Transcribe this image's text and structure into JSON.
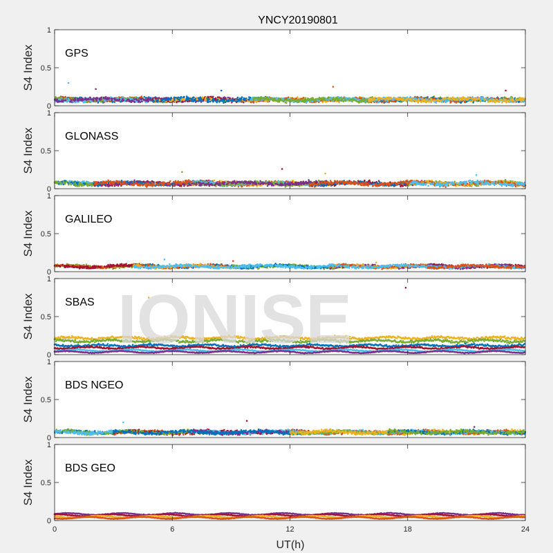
{
  "chart_data": {
    "type": "scatter",
    "title": "YNCY20190801",
    "xlabel": "UT(h)",
    "ylabel": "S4 Index",
    "xlim": [
      0,
      24
    ],
    "ylim": [
      0,
      1
    ],
    "x_ticks": [
      "0",
      "6",
      "12",
      "18",
      "24"
    ],
    "y_ticks": [
      "0",
      "0.5",
      "1"
    ],
    "watermark": "IONISE",
    "colors": [
      "#0072bd",
      "#d95319",
      "#edb120",
      "#7e2f8e",
      "#77ac30",
      "#4dbeee",
      "#a2142f"
    ],
    "panels": [
      {
        "label": "GPS",
        "baseline": 0.08,
        "noise": 0.035,
        "segments": [
          {
            "start": 0,
            "end": 6,
            "colors": [
              "#0072bd",
              "#d95319",
              "#77ac30",
              "#4dbeee",
              "#7e2f8e"
            ]
          },
          {
            "start": 5,
            "end": 11,
            "colors": [
              "#7e2f8e",
              "#a2142f",
              "#edb120",
              "#0072bd"
            ]
          },
          {
            "start": 10,
            "end": 17,
            "colors": [
              "#edb120",
              "#d95319",
              "#4dbeee",
              "#77ac30"
            ]
          },
          {
            "start": 16,
            "end": 24,
            "colors": [
              "#77ac30",
              "#0072bd",
              "#d95319",
              "#4dbeee",
              "#edb120"
            ]
          }
        ],
        "outliers": [
          [
            0.7,
            0.3
          ],
          [
            2.1,
            0.22
          ],
          [
            8.5,
            0.2
          ],
          [
            14.2,
            0.25
          ],
          [
            23.0,
            0.2
          ]
        ]
      },
      {
        "label": "GLONASS",
        "baseline": 0.07,
        "noise": 0.035,
        "segments": [
          {
            "start": 0,
            "end": 2.5,
            "colors": [
              "#4dbeee",
              "#0072bd",
              "#77ac30"
            ]
          },
          {
            "start": 2,
            "end": 8,
            "colors": [
              "#a2142f",
              "#7e2f8e",
              "#0072bd",
              "#d95319"
            ]
          },
          {
            "start": 7,
            "end": 14,
            "colors": [
              "#edb120",
              "#d95319",
              "#4dbeee",
              "#77ac30",
              "#7e2f8e"
            ]
          },
          {
            "start": 13,
            "end": 19,
            "colors": [
              "#a2142f",
              "#0072bd",
              "#d95319"
            ]
          },
          {
            "start": 18,
            "end": 24,
            "colors": [
              "#77ac30",
              "#edb120",
              "#d95319",
              "#4dbeee"
            ]
          }
        ],
        "outliers": [
          [
            6.5,
            0.22
          ],
          [
            11.6,
            0.26
          ],
          [
            13.8,
            0.2
          ],
          [
            21.5,
            0.18
          ]
        ]
      },
      {
        "label": "GALILEO",
        "baseline": 0.07,
        "noise": 0.025,
        "segments": [
          {
            "start": 0,
            "end": 5,
            "colors": [
              "#77ac30",
              "#d95319",
              "#a2142f"
            ]
          },
          {
            "start": 4,
            "end": 10,
            "colors": [
              "#0072bd",
              "#d95319",
              "#edb120",
              "#4dbeee"
            ]
          },
          {
            "start": 9,
            "end": 15,
            "colors": [
              "#77ac30",
              "#0072bd",
              "#4dbeee"
            ]
          },
          {
            "start": 14,
            "end": 20,
            "colors": [
              "#7e2f8e",
              "#edb120",
              "#d95319",
              "#4dbeee"
            ]
          },
          {
            "start": 19,
            "end": 24,
            "colors": [
              "#a2142f",
              "#7e2f8e",
              "#4dbeee",
              "#d95319"
            ]
          }
        ],
        "outliers": [
          [
            5.6,
            0.16
          ],
          [
            9.1,
            0.14
          ],
          [
            16.4,
            0.12
          ]
        ]
      },
      {
        "label": "SBAS",
        "bands": [
          {
            "color": "#edb120",
            "level": 0.22,
            "noise": 0.025
          },
          {
            "color": "#77ac30",
            "level": 0.18,
            "noise": 0.025
          },
          {
            "color": "#0072bd",
            "level": 0.12,
            "noise": 0.02
          },
          {
            "color": "#a2142f",
            "level": 0.09,
            "noise": 0.015
          },
          {
            "color": "#4dbeee",
            "level": 0.055,
            "noise": 0.01
          },
          {
            "color": "#7e2f8e",
            "level": 0.035,
            "noise": 0.008
          }
        ],
        "outliers": [
          [
            4.8,
            0.75
          ],
          [
            17.9,
            0.88
          ]
        ]
      },
      {
        "label": "BDS NGEO",
        "baseline": 0.07,
        "noise": 0.03,
        "segments": [
          {
            "start": 0,
            "end": 4,
            "colors": [
              "#0072bd",
              "#77ac30",
              "#4dbeee"
            ]
          },
          {
            "start": 3,
            "end": 8,
            "colors": [
              "#d95319",
              "#a2142f",
              "#77ac30",
              "#0072bd"
            ]
          },
          {
            "start": 7,
            "end": 13,
            "colors": [
              "#a2142f",
              "#4dbeee",
              "#7e2f8e",
              "#0072bd"
            ]
          },
          {
            "start": 12,
            "end": 18,
            "colors": [
              "#d95319",
              "#4dbeee",
              "#77ac30",
              "#edb120"
            ]
          },
          {
            "start": 17,
            "end": 24,
            "colors": [
              "#edb120",
              "#d95319",
              "#4dbeee",
              "#0072bd",
              "#77ac30"
            ]
          }
        ],
        "outliers": [
          [
            3.5,
            0.2
          ],
          [
            9.8,
            0.22
          ],
          [
            21.4,
            0.14
          ]
        ]
      },
      {
        "label": "BDS GEO",
        "bands": [
          {
            "color": "#7e2f8e",
            "level": 0.085,
            "noise": 0.007
          },
          {
            "color": "#a2142f",
            "level": 0.07,
            "noise": 0.006
          },
          {
            "color": "#edb120",
            "level": 0.05,
            "noise": 0.006
          },
          {
            "color": "#d95319",
            "level": 0.035,
            "noise": 0.005
          }
        ],
        "outliers": []
      }
    ]
  }
}
